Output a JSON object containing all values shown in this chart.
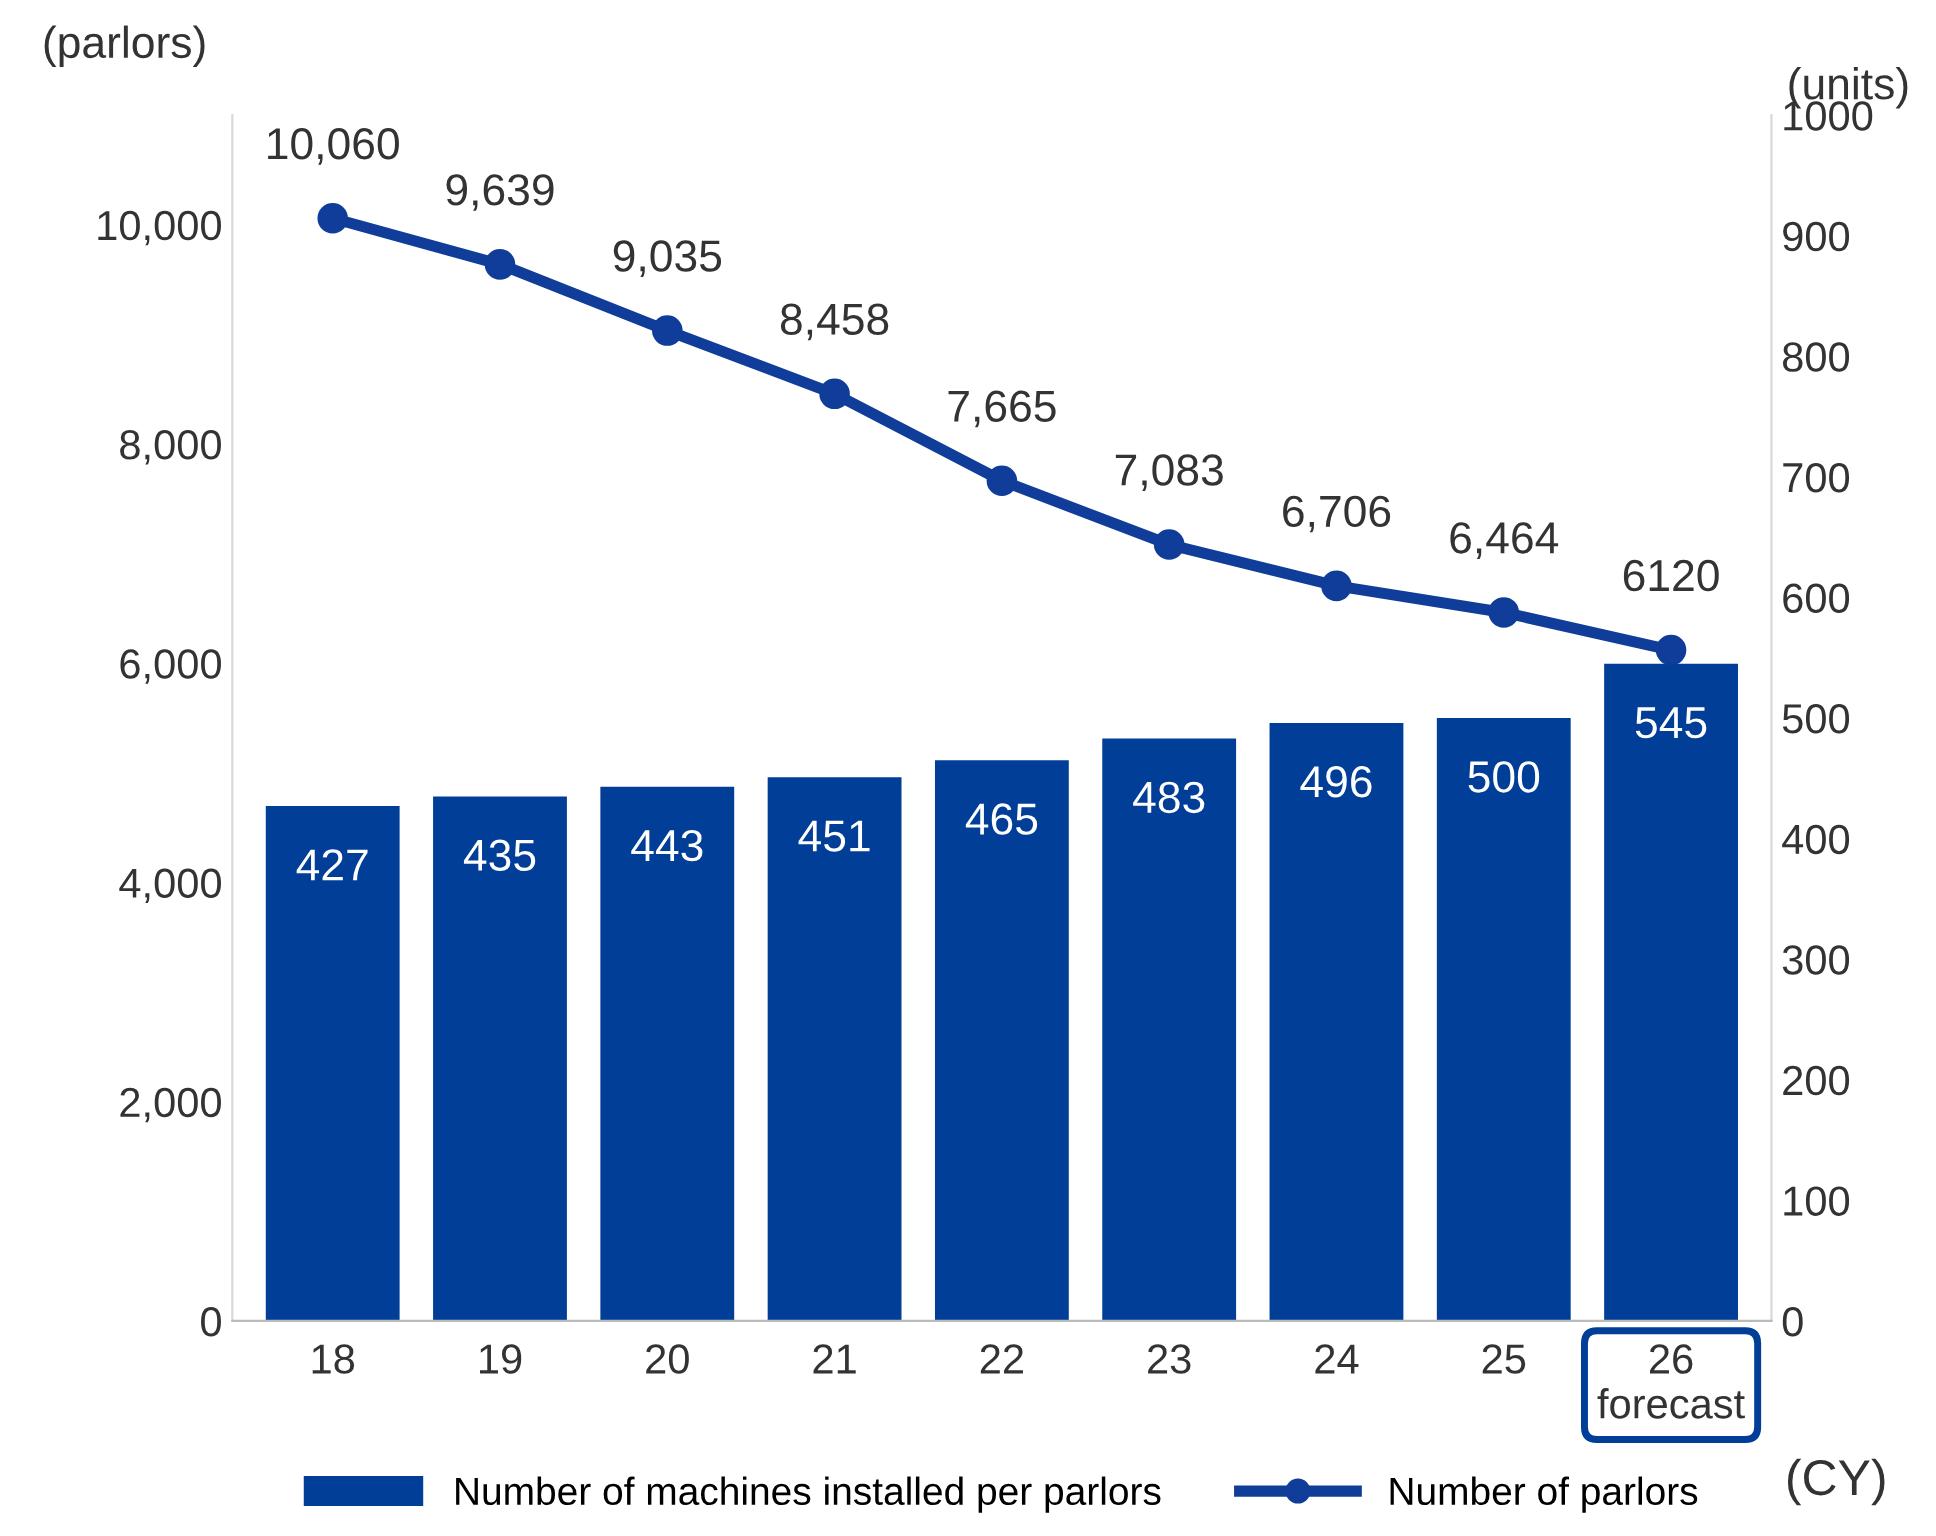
{
  "chart_data": {
    "type": "bar",
    "categories": [
      "18",
      "19",
      "20",
      "21",
      "22",
      "23",
      "24",
      "25",
      "26\nforecast"
    ],
    "series": [
      {
        "name": "Number of machines installed per parlors",
        "axis": "y2",
        "color": "#003e98",
        "values": [
          427,
          435,
          443,
          451,
          465,
          483,
          496,
          500,
          545
        ],
        "value_labels": [
          "427",
          "435",
          "443",
          "451",
          "465",
          "483",
          "496",
          "500",
          "545"
        ]
      },
      {
        "name": "Number of parlors",
        "type": "line",
        "axis": "y",
        "color": "#0f3d99",
        "marker": "circle",
        "line_style": "solid",
        "values": [
          10060,
          9639,
          9035,
          8458,
          7665,
          7083,
          6706,
          6464,
          6120
        ],
        "value_labels": [
          "10,060",
          "9,639",
          "9,035",
          "8,458",
          "7,665",
          "7,083",
          "6,706",
          "6,464",
          "6120"
        ]
      }
    ],
    "ylim": [
      0,
      11000
    ],
    "yticks": [
      {
        "value": 0,
        "label": "0"
      },
      {
        "value": 2000,
        "label": "2,000"
      },
      {
        "value": 4000,
        "label": "4,000"
      },
      {
        "value": 6000,
        "label": "6,000"
      },
      {
        "value": 8000,
        "label": "8,000"
      },
      {
        "value": 10000,
        "label": "10,000"
      }
    ],
    "y2lim": [
      0,
      1000
    ],
    "y2ticks": [
      0,
      100,
      200,
      300,
      400,
      500,
      600,
      700,
      800,
      900,
      1000
    ],
    "ylabel": "(parlors)",
    "y2label": "(units)",
    "xlabel": "(CY)",
    "legend": "bottom",
    "grid": false
  }
}
